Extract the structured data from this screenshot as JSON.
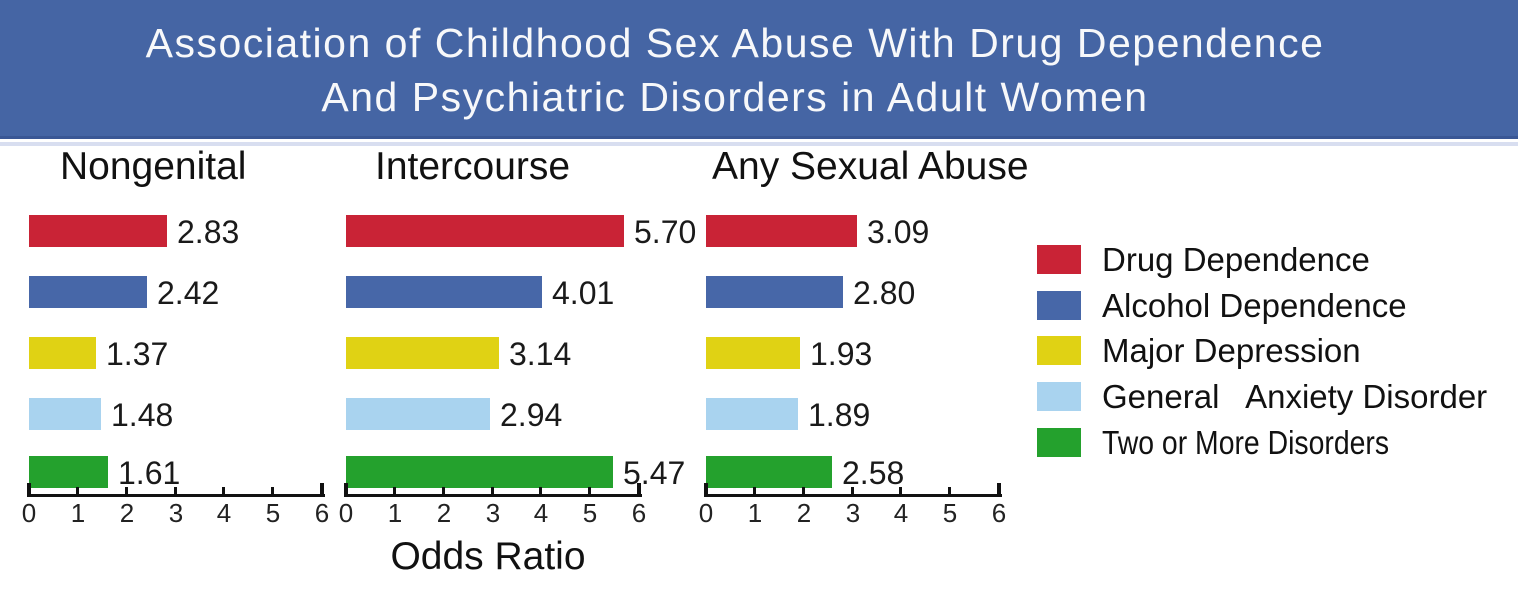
{
  "banner": {
    "title_line1": "Association of Childhood Sex Abuse With Drug Dependence",
    "title_line2": "And Psychiatric Disorders in Adult Women",
    "bg_color": "#4565A4",
    "text_color": "#F7F8FA"
  },
  "chart_data": {
    "type": "bar",
    "orientation": "horizontal",
    "title": "Association of Childhood Sex Abuse With Drug Dependence And Psychiatric Disorders in Adult Women",
    "xlabel": "Odds Ratio",
    "axis": {
      "min": 0,
      "max": 6,
      "ticks": [
        0,
        1,
        2,
        3,
        4,
        5,
        6
      ]
    },
    "series": [
      "Drug Dependence",
      "Alcohol Dependence",
      "Major Depression",
      "General   Anxiety Disorder",
      "Two or More Disorders"
    ],
    "series_colors": [
      "#C92336",
      "#4767A8",
      "#E0D214",
      "#A9D3EF",
      "#24A12D"
    ],
    "panels": [
      {
        "title": "Nongenital",
        "values": [
          "2.83",
          "2.42",
          "1.37",
          "1.48",
          "1.61"
        ]
      },
      {
        "title": "Intercourse",
        "values": [
          "5.70",
          "4.01",
          "3.14",
          "2.94",
          "5.47"
        ]
      },
      {
        "title": "Any Sexual Abuse",
        "values": [
          "3.09",
          "2.80",
          "1.93",
          "1.89",
          "2.58"
        ]
      }
    ],
    "legend_position": "right",
    "grid": false
  }
}
